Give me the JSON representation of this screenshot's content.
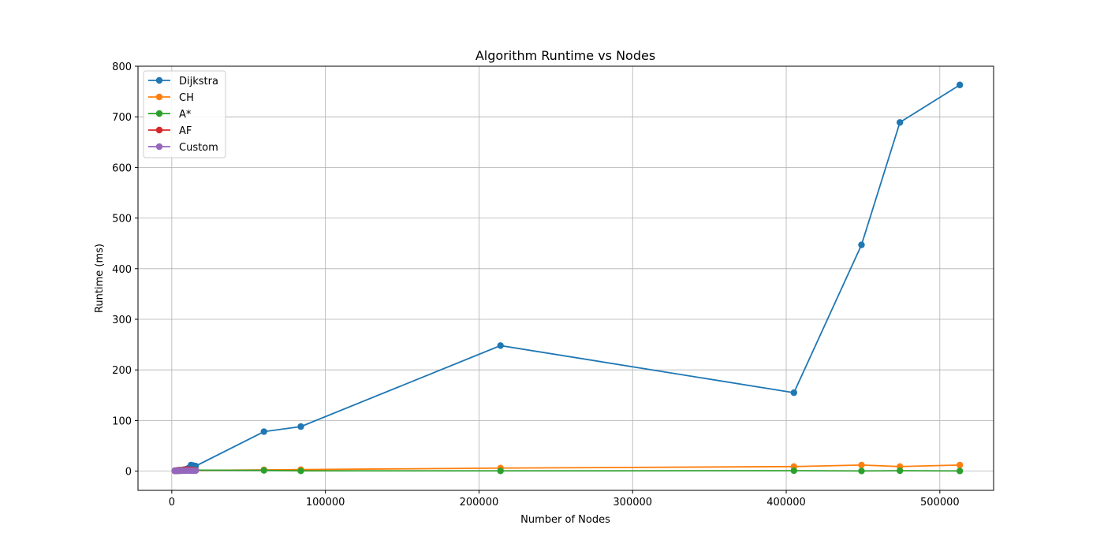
{
  "chart_data": {
    "type": "line",
    "title": "Algorithm Runtime vs Nodes",
    "xlabel": "Number of Nodes",
    "ylabel": "Runtime (ms)",
    "xlim": [
      -22000,
      535000
    ],
    "ylim": [
      -38,
      800
    ],
    "xticks": [
      0,
      100000,
      200000,
      300000,
      400000,
      500000
    ],
    "xtick_labels": [
      "0",
      "100000",
      "200000",
      "300000",
      "400000",
      "500000"
    ],
    "yticks": [
      0,
      100,
      200,
      300,
      400,
      500,
      600,
      700,
      800
    ],
    "ytick_labels": [
      "0",
      "100",
      "200",
      "300",
      "400",
      "500",
      "600",
      "700",
      "800"
    ],
    "grid": true,
    "legend_position": "top-left",
    "series": [
      {
        "name": "Dijkstra",
        "color": "#1f77b4",
        "points": [
          [
            2000,
            1
          ],
          [
            3500,
            1.5
          ],
          [
            5000,
            2
          ],
          [
            6500,
            2
          ],
          [
            8000,
            3
          ],
          [
            9500,
            4
          ],
          [
            11000,
            6
          ],
          [
            12500,
            12
          ],
          [
            14000,
            11
          ],
          [
            15500,
            10
          ],
          [
            60000,
            78
          ],
          [
            84000,
            88
          ],
          [
            214000,
            248
          ],
          [
            405000,
            155
          ],
          [
            449000,
            447
          ],
          [
            474000,
            689
          ],
          [
            513000,
            763
          ]
        ]
      },
      {
        "name": "CH",
        "color": "#ff7f0e",
        "points": [
          [
            2000,
            0.5
          ],
          [
            3500,
            0.5
          ],
          [
            5000,
            0.7
          ],
          [
            6500,
            0.8
          ],
          [
            8000,
            1
          ],
          [
            9500,
            1
          ],
          [
            11000,
            1.2
          ],
          [
            12500,
            1.5
          ],
          [
            14000,
            1.5
          ],
          [
            15500,
            1.5
          ],
          [
            60000,
            2.5
          ],
          [
            84000,
            3
          ],
          [
            214000,
            6
          ],
          [
            405000,
            9
          ],
          [
            449000,
            12
          ],
          [
            474000,
            9
          ],
          [
            513000,
            12
          ]
        ]
      },
      {
        "name": "A*",
        "color": "#2ca02c",
        "points": [
          [
            2000,
            0.5
          ],
          [
            3500,
            0.5
          ],
          [
            5000,
            1
          ],
          [
            6500,
            1
          ],
          [
            8000,
            1
          ],
          [
            9500,
            1.5
          ],
          [
            11000,
            2
          ],
          [
            12500,
            2
          ],
          [
            14000,
            2
          ],
          [
            15500,
            2
          ],
          [
            60000,
            1.5
          ],
          [
            84000,
            0.5
          ],
          [
            214000,
            0.5
          ],
          [
            405000,
            0.8
          ],
          [
            449000,
            0.3
          ],
          [
            474000,
            0.8
          ],
          [
            513000,
            0.3
          ]
        ]
      },
      {
        "name": "AF",
        "color": "#d62728",
        "points": [
          [
            2000,
            0.5
          ],
          [
            3500,
            1
          ],
          [
            5000,
            1.5
          ],
          [
            6500,
            2
          ],
          [
            8000,
            2.5
          ],
          [
            9500,
            3
          ],
          [
            11000,
            3
          ],
          [
            12500,
            2.5
          ],
          [
            14000,
            2
          ],
          [
            15500,
            1.5
          ]
        ]
      },
      {
        "name": "Custom",
        "color": "#9467bd",
        "points": [
          [
            2000,
            0.3
          ],
          [
            3500,
            0.5
          ],
          [
            5000,
            0.5
          ],
          [
            6500,
            0.8
          ],
          [
            8000,
            1
          ],
          [
            9500,
            1
          ],
          [
            11000,
            1
          ],
          [
            12500,
            0.8
          ],
          [
            14000,
            0.8
          ],
          [
            15500,
            0.8
          ]
        ]
      }
    ]
  }
}
